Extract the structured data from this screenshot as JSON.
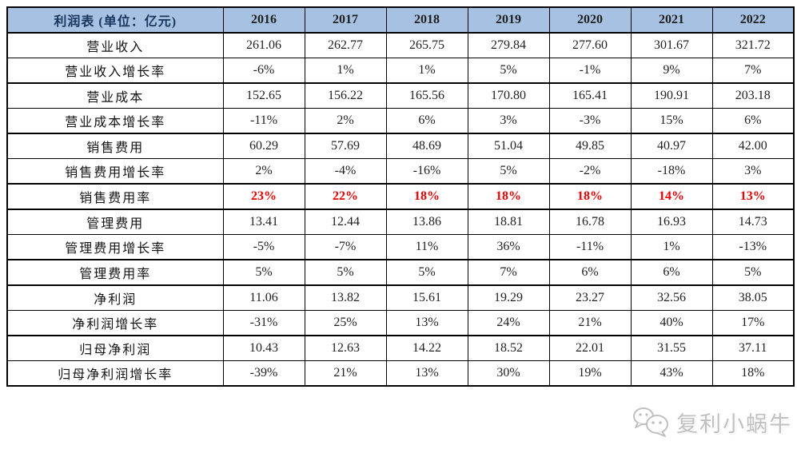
{
  "table": {
    "header": {
      "title": "利润表 (单位：亿元)",
      "years": [
        "2016",
        "2017",
        "2018",
        "2019",
        "2020",
        "2021",
        "2022"
      ]
    },
    "rows": [
      {
        "label": "营业收入",
        "values": [
          "261.06",
          "262.77",
          "265.75",
          "279.84",
          "277.60",
          "301.67",
          "321.72"
        ],
        "group_start": true,
        "highlight": false
      },
      {
        "label": "营业收入增长率",
        "values": [
          "-6%",
          "1%",
          "1%",
          "5%",
          "-1%",
          "9%",
          "7%"
        ],
        "group_start": false,
        "highlight": false
      },
      {
        "label": "营业成本",
        "values": [
          "152.65",
          "156.22",
          "165.56",
          "170.80",
          "165.41",
          "190.91",
          "203.18"
        ],
        "group_start": true,
        "highlight": false
      },
      {
        "label": "营业成本增长率",
        "values": [
          "-11%",
          "2%",
          "6%",
          "3%",
          "-3%",
          "15%",
          "6%"
        ],
        "group_start": false,
        "highlight": false
      },
      {
        "label": "销售费用",
        "values": [
          "60.29",
          "57.69",
          "48.69",
          "51.04",
          "49.85",
          "40.97",
          "42.00"
        ],
        "group_start": true,
        "highlight": false
      },
      {
        "label": "销售费用增长率",
        "values": [
          "2%",
          "-4%",
          "-16%",
          "5%",
          "-2%",
          "-18%",
          "3%"
        ],
        "group_start": false,
        "highlight": false
      },
      {
        "label": "销售费用率",
        "values": [
          "23%",
          "22%",
          "18%",
          "18%",
          "18%",
          "14%",
          "13%"
        ],
        "group_start": true,
        "highlight": true
      },
      {
        "label": "管理费用",
        "values": [
          "13.41",
          "12.44",
          "13.86",
          "18.81",
          "16.78",
          "16.93",
          "14.73"
        ],
        "group_start": true,
        "highlight": false
      },
      {
        "label": "管理费用增长率",
        "values": [
          "-5%",
          "-7%",
          "11%",
          "36%",
          "-11%",
          "1%",
          "-13%"
        ],
        "group_start": false,
        "highlight": false
      },
      {
        "label": "管理费用率",
        "values": [
          "5%",
          "5%",
          "5%",
          "7%",
          "6%",
          "6%",
          "5%"
        ],
        "group_start": true,
        "highlight": false
      },
      {
        "label": "净利润",
        "values": [
          "11.06",
          "13.82",
          "15.61",
          "19.29",
          "23.27",
          "32.56",
          "38.05"
        ],
        "group_start": true,
        "highlight": false
      },
      {
        "label": "净利润增长率",
        "values": [
          "-31%",
          "25%",
          "13%",
          "24%",
          "21%",
          "40%",
          "17%"
        ],
        "group_start": false,
        "highlight": false
      },
      {
        "label": "归母净利润",
        "values": [
          "10.43",
          "12.63",
          "14.22",
          "18.52",
          "22.01",
          "31.55",
          "37.11"
        ],
        "group_start": true,
        "highlight": false
      },
      {
        "label": "归母净利润增长率",
        "values": [
          "-39%",
          "21%",
          "13%",
          "30%",
          "19%",
          "43%",
          "18%"
        ],
        "group_start": false,
        "highlight": false
      }
    ]
  },
  "watermark": {
    "icon": "wechat-icon",
    "text": "复利小蜗牛"
  },
  "colors": {
    "header_bg": "#a6c1e1",
    "header_title_text": "#17375e",
    "highlight_red": "#ee0000",
    "border": "#000000",
    "body_text": "#1f1f1f",
    "watermark_gray": "#c0c0c0"
  }
}
